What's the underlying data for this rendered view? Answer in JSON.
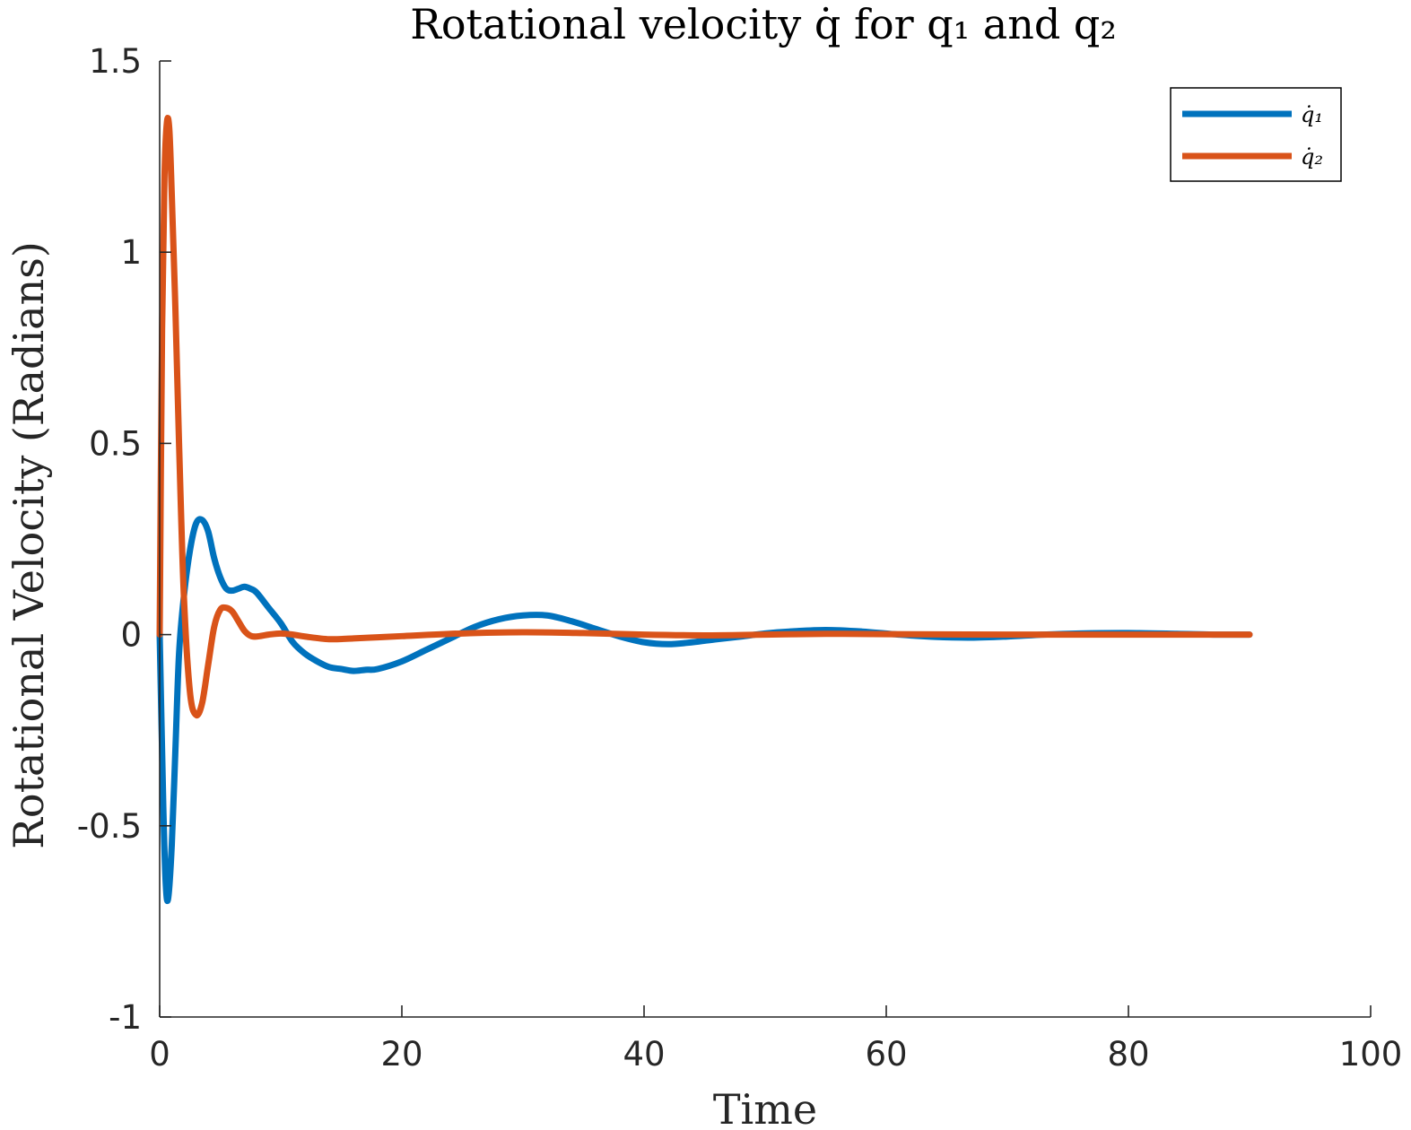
{
  "chart_data": {
    "type": "line",
    "title": "Rotational velocity q̇ for q₁ and q₂",
    "xlabel": "Time",
    "ylabel": "Rotational Velocity (Radians)",
    "xlim": [
      0,
      100
    ],
    "ylim": [
      -1,
      1.5
    ],
    "xticks": [
      0,
      20,
      40,
      60,
      80,
      100
    ],
    "xtick_labels": [
      "0",
      "20",
      "40",
      "60",
      "80",
      "100"
    ],
    "yticks": [
      -1,
      -0.5,
      0,
      0.5,
      1,
      1.5
    ],
    "ytick_labels": [
      "-1",
      "-0.5",
      "0",
      "0.5",
      "1",
      "1.5"
    ],
    "grid": false,
    "legend_position": "top-right",
    "series": [
      {
        "name": "q̇₁",
        "color": "#0072BD",
        "x": [
          0,
          0.3,
          0.5,
          0.7,
          1.0,
          1.3,
          1.6,
          2.0,
          2.5,
          3.0,
          3.5,
          4.0,
          4.5,
          5.0,
          5.5,
          6.0,
          6.5,
          7.0,
          7.5,
          8.0,
          9.0,
          10.0,
          11.0,
          12.0,
          13.0,
          14.0,
          15.0,
          16.0,
          17.0,
          18.0,
          20.0,
          22.0,
          24.0,
          26.0,
          28.0,
          30.0,
          32.0,
          34.0,
          36.0,
          38.0,
          40.0,
          42.0,
          44.0,
          46.0,
          48.0,
          50.0,
          52.0,
          55.0,
          58.0,
          61.0,
          64.0,
          67.0,
          70.0,
          73.0,
          76.0,
          80.0,
          84.0,
          87.0,
          90.0
        ],
        "y": [
          0,
          -0.45,
          -0.65,
          -0.69,
          -0.55,
          -0.3,
          -0.05,
          0.1,
          0.22,
          0.29,
          0.3,
          0.27,
          0.2,
          0.15,
          0.12,
          0.115,
          0.12,
          0.125,
          0.12,
          0.11,
          0.07,
          0.03,
          -0.02,
          -0.05,
          -0.07,
          -0.085,
          -0.09,
          -0.095,
          -0.092,
          -0.09,
          -0.07,
          -0.04,
          -0.01,
          0.02,
          0.04,
          0.05,
          0.05,
          0.035,
          0.015,
          -0.005,
          -0.02,
          -0.025,
          -0.02,
          -0.012,
          -0.005,
          0.003,
          0.008,
          0.012,
          0.008,
          0.0,
          -0.006,
          -0.008,
          -0.005,
          0.0,
          0.003,
          0.004,
          0.002,
          0.0,
          0.0
        ]
      },
      {
        "name": "q̇₂",
        "color": "#D95319",
        "x": [
          0,
          0.2,
          0.4,
          0.6,
          0.8,
          1.0,
          1.3,
          1.6,
          2.0,
          2.5,
          3.0,
          3.5,
          4.0,
          4.5,
          5.0,
          5.5,
          6.0,
          6.5,
          7.0,
          7.5,
          8.0,
          9.0,
          10.0,
          11.0,
          12.0,
          14.0,
          16.0,
          18.0,
          20.0,
          25.0,
          30.0,
          35.0,
          40.0,
          45.0,
          50.0,
          55.0,
          60.0,
          70.0,
          80.0,
          90.0
        ],
        "y": [
          0,
          0.8,
          1.2,
          1.34,
          1.32,
          1.15,
          0.85,
          0.5,
          0.1,
          -0.15,
          -0.21,
          -0.18,
          -0.08,
          0.02,
          0.065,
          0.07,
          0.06,
          0.035,
          0.01,
          -0.003,
          -0.005,
          0.0,
          0.003,
          0.0,
          -0.005,
          -0.012,
          -0.01,
          -0.007,
          -0.004,
          0.003,
          0.006,
          0.004,
          0.0,
          -0.002,
          0.0,
          0.002,
          0.001,
          0.0,
          0.0,
          0.0
        ]
      }
    ]
  }
}
